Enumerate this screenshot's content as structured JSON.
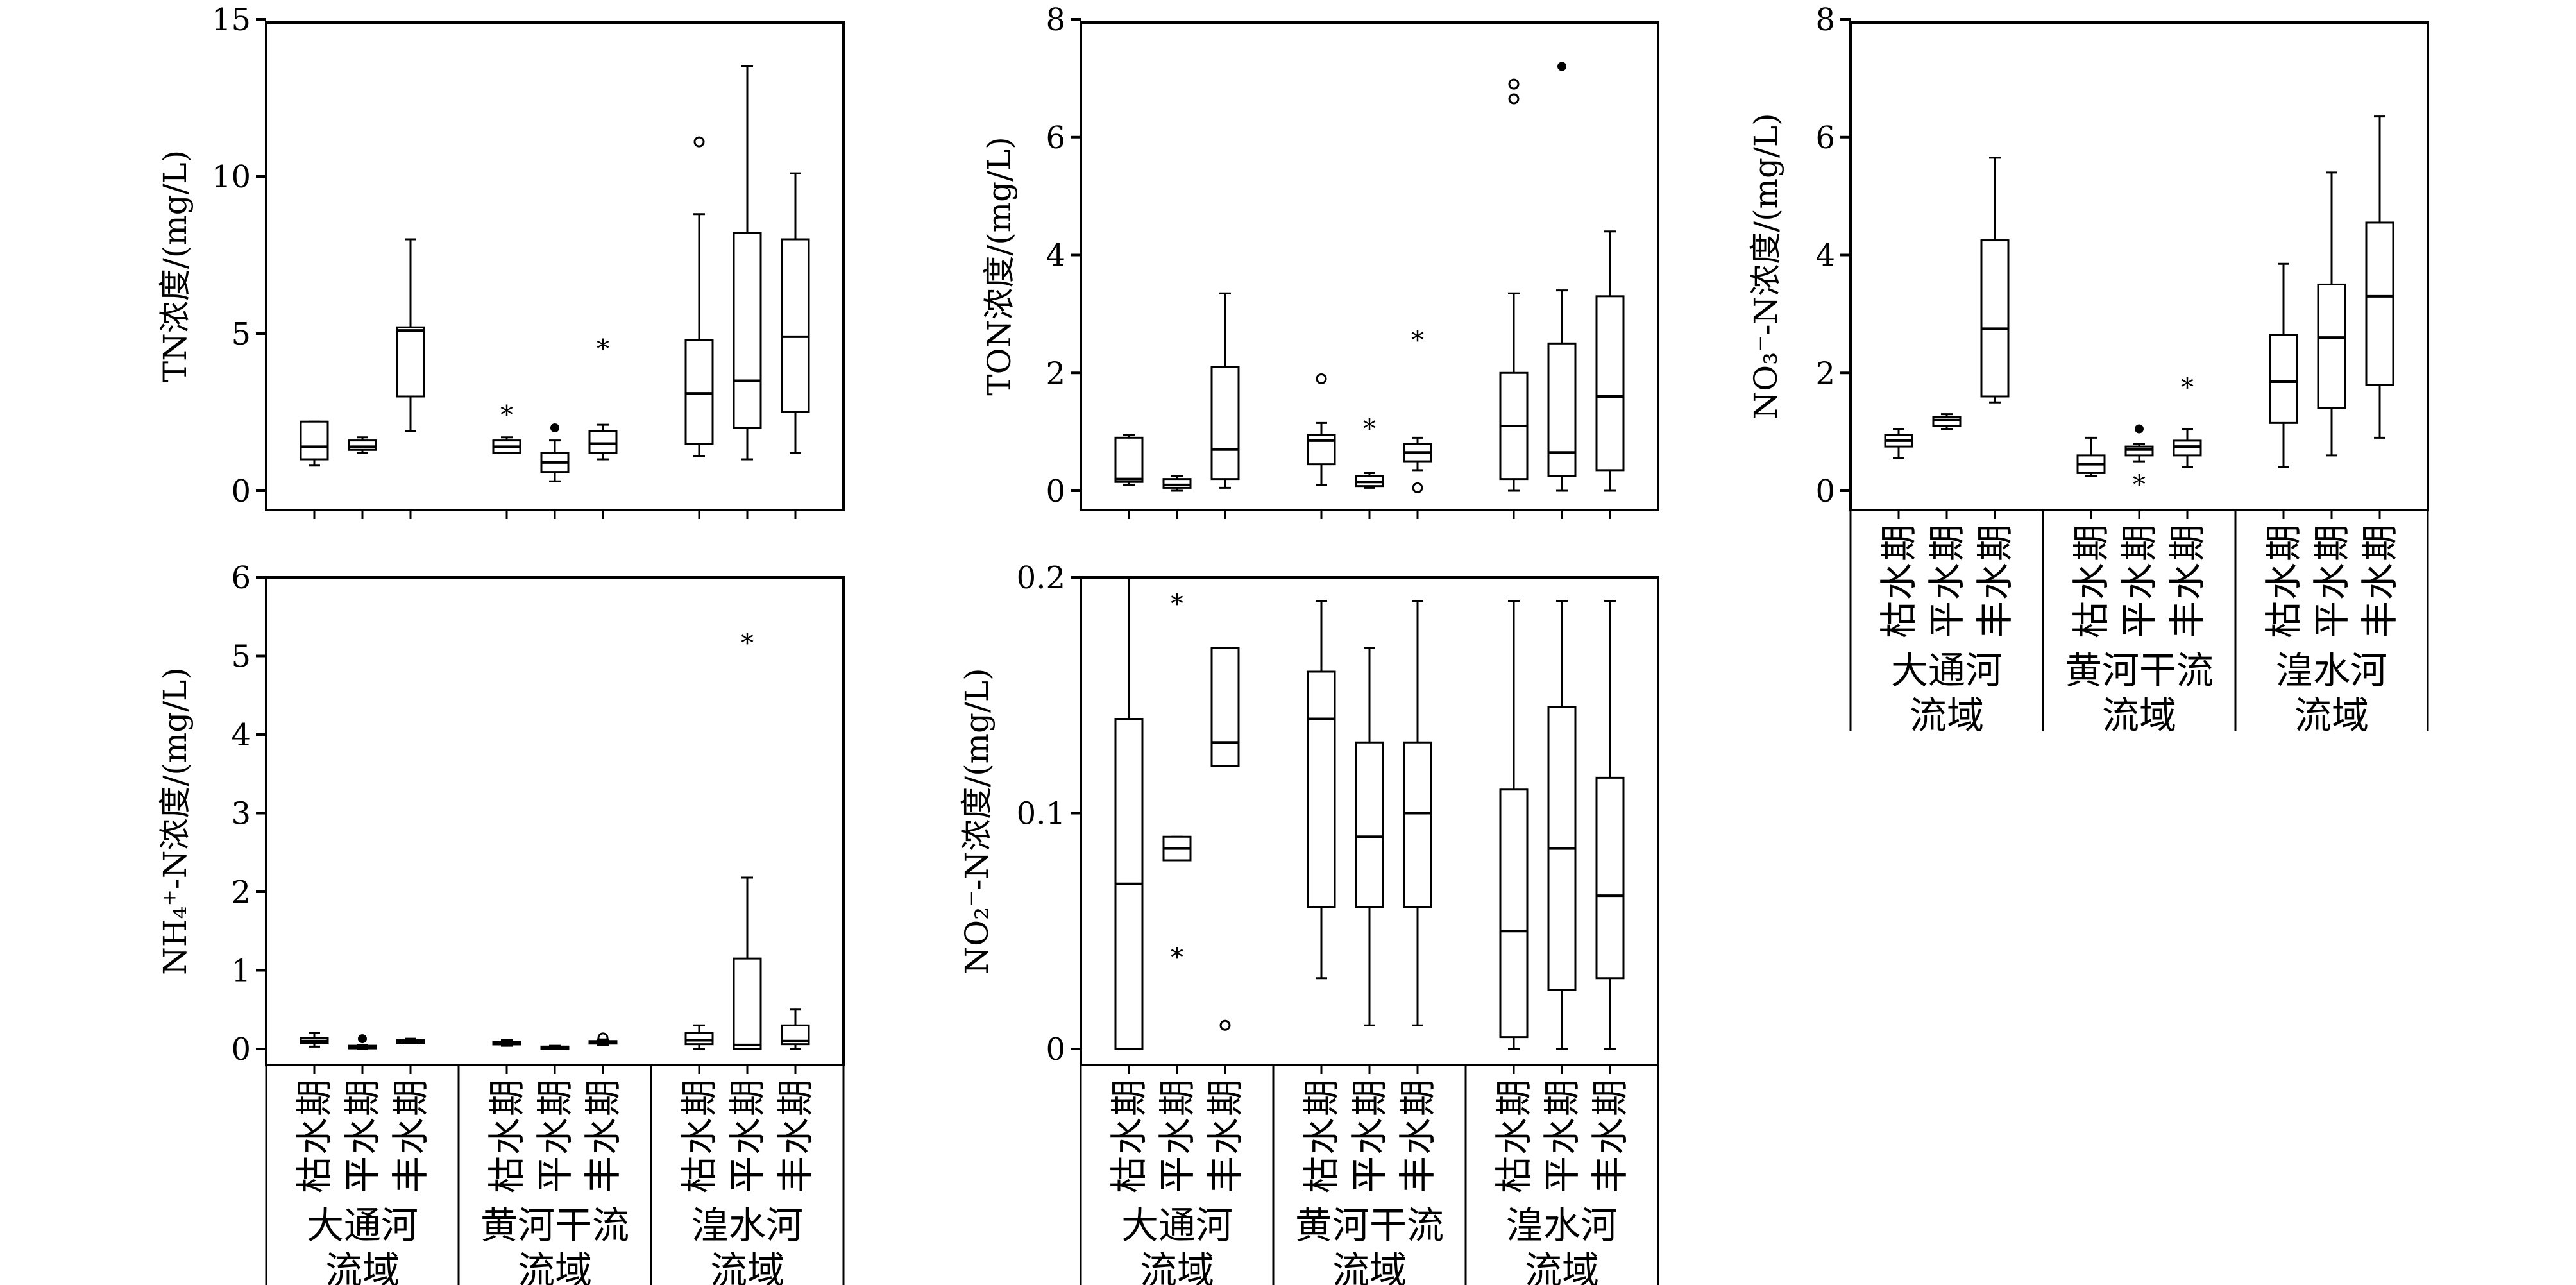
{
  "x_labels": {
    "seasons": [
      "枯水期",
      "平水期",
      "丰水期"
    ],
    "basins": [
      {
        "line1": "大通河",
        "line2": "流域"
      },
      {
        "line1": "黄河干流",
        "line2": "流域"
      },
      {
        "line1": "湟水河",
        "line2": "流域"
      }
    ]
  },
  "chart_data": [
    {
      "id": "TN",
      "type": "box",
      "ylabel": "TN浓度/(mg/L)",
      "ylim": [
        0,
        15
      ],
      "yticks": [
        0,
        5,
        10,
        15
      ],
      "tick_labels": [
        "0",
        "5",
        "10",
        "15"
      ],
      "boxes": [
        {
          "basin": "大通河流域",
          "season": "枯水期",
          "min": 0.8,
          "q1": 1.0,
          "median": 1.4,
          "q3": 2.2,
          "max": 2.2,
          "outliers": []
        },
        {
          "basin": "大通河流域",
          "season": "平水期",
          "min": 1.2,
          "q1": 1.3,
          "median": 1.4,
          "q3": 1.6,
          "max": 1.7,
          "outliers": []
        },
        {
          "basin": "大通河流域",
          "season": "丰水期",
          "min": 1.9,
          "q1": 3.0,
          "median": 5.1,
          "q3": 5.2,
          "max": 8.0,
          "outliers": []
        },
        {
          "basin": "黄河干流流域",
          "season": "枯水期",
          "min": 1.2,
          "q1": 1.2,
          "median": 1.4,
          "q3": 1.6,
          "max": 1.7,
          "outliers": [
            {
              "value": 2.5,
              "marker": "star"
            }
          ]
        },
        {
          "basin": "黄河干流流域",
          "season": "平水期",
          "min": 0.3,
          "q1": 0.6,
          "median": 0.9,
          "q3": 1.2,
          "max": 1.6,
          "outliers": [
            {
              "value": 2.0,
              "marker": "dot"
            }
          ]
        },
        {
          "basin": "黄河干流流域",
          "season": "丰水期",
          "min": 1.0,
          "q1": 1.2,
          "median": 1.5,
          "q3": 1.9,
          "max": 2.1,
          "outliers": [
            {
              "value": 4.6,
              "marker": "star"
            }
          ]
        },
        {
          "basin": "湟水河流域",
          "season": "枯水期",
          "min": 1.1,
          "q1": 1.5,
          "median": 3.1,
          "q3": 4.8,
          "max": 8.8,
          "outliers": [
            {
              "value": 11.1,
              "marker": "circle"
            }
          ]
        },
        {
          "basin": "湟水河流域",
          "season": "平水期",
          "min": 1.0,
          "q1": 2.0,
          "median": 3.5,
          "q3": 8.2,
          "max": 13.5,
          "outliers": []
        },
        {
          "basin": "湟水河流域",
          "season": "丰水期",
          "min": 1.2,
          "q1": 2.5,
          "median": 4.9,
          "q3": 8.0,
          "max": 10.1,
          "outliers": []
        }
      ]
    },
    {
      "id": "TON",
      "type": "box",
      "ylabel": "TON浓度/(mg/L)",
      "ylim": [
        0,
        8
      ],
      "yticks": [
        0,
        2,
        4,
        6,
        8
      ],
      "tick_labels": [
        "0",
        "2",
        "4",
        "6",
        "8"
      ],
      "boxes": [
        {
          "basin": "大通河流域",
          "season": "枯水期",
          "min": 0.1,
          "q1": 0.15,
          "median": 0.2,
          "q3": 0.9,
          "max": 0.95,
          "outliers": []
        },
        {
          "basin": "大通河流域",
          "season": "平水期",
          "min": 0.0,
          "q1": 0.05,
          "median": 0.1,
          "q3": 0.2,
          "max": 0.25,
          "outliers": []
        },
        {
          "basin": "大通河流域",
          "season": "丰水期",
          "min": 0.05,
          "q1": 0.2,
          "median": 0.7,
          "q3": 2.1,
          "max": 3.35,
          "outliers": []
        },
        {
          "basin": "黄河干流流域",
          "season": "枯水期",
          "min": 0.1,
          "q1": 0.45,
          "median": 0.85,
          "q3": 0.95,
          "max": 1.15,
          "outliers": [
            {
              "value": 1.9,
              "marker": "circle"
            }
          ]
        },
        {
          "basin": "黄河干流流域",
          "season": "平水期",
          "min": 0.05,
          "q1": 0.08,
          "median": 0.15,
          "q3": 0.25,
          "max": 0.3,
          "outliers": [
            {
              "value": 1.1,
              "marker": "star"
            }
          ]
        },
        {
          "basin": "黄河干流流域",
          "season": "丰水期",
          "min": 0.35,
          "q1": 0.5,
          "median": 0.65,
          "q3": 0.8,
          "max": 0.9,
          "outliers": [
            {
              "value": 0.05,
              "marker": "circle"
            },
            {
              "value": 2.6,
              "marker": "star"
            }
          ]
        },
        {
          "basin": "湟水河流域",
          "season": "枯水期",
          "min": 0.0,
          "q1": 0.2,
          "median": 1.1,
          "q3": 2.0,
          "max": 3.35,
          "outliers": [
            {
              "value": 6.65,
              "marker": "circle"
            },
            {
              "value": 6.9,
              "marker": "circle"
            }
          ]
        },
        {
          "basin": "湟水河流域",
          "season": "平水期",
          "min": 0.0,
          "q1": 0.25,
          "median": 0.65,
          "q3": 2.5,
          "max": 3.4,
          "outliers": [
            {
              "value": 7.2,
              "marker": "dot"
            }
          ]
        },
        {
          "basin": "湟水河流域",
          "season": "丰水期",
          "min": 0.0,
          "q1": 0.35,
          "median": 1.6,
          "q3": 3.3,
          "max": 4.4,
          "outliers": []
        }
      ]
    },
    {
      "id": "NO3",
      "type": "box",
      "ylabel": "NO₃⁻-N浓度/(mg/L)",
      "ylim": [
        0,
        8
      ],
      "yticks": [
        0,
        2,
        4,
        6,
        8
      ],
      "tick_labels": [
        "0",
        "2",
        "4",
        "6",
        "8"
      ],
      "boxes": [
        {
          "basin": "大通河流域",
          "season": "枯水期",
          "min": 0.55,
          "q1": 0.75,
          "median": 0.85,
          "q3": 0.95,
          "max": 1.05,
          "outliers": []
        },
        {
          "basin": "大通河流域",
          "season": "平水期",
          "min": 1.05,
          "q1": 1.1,
          "median": 1.2,
          "q3": 1.25,
          "max": 1.3,
          "outliers": []
        },
        {
          "basin": "大通河流域",
          "season": "丰水期",
          "min": 1.5,
          "q1": 1.6,
          "median": 2.75,
          "q3": 4.25,
          "max": 5.65,
          "outliers": []
        },
        {
          "basin": "黄河干流流域",
          "season": "枯水期",
          "min": 0.25,
          "q1": 0.3,
          "median": 0.45,
          "q3": 0.6,
          "max": 0.9,
          "outliers": []
        },
        {
          "basin": "黄河干流流域",
          "season": "平水期",
          "min": 0.5,
          "q1": 0.6,
          "median": 0.7,
          "q3": 0.75,
          "max": 0.8,
          "outliers": [
            {
              "value": 0.15,
              "marker": "star"
            },
            {
              "value": 1.05,
              "marker": "dot"
            }
          ]
        },
        {
          "basin": "黄河干流流域",
          "season": "丰水期",
          "min": 0.4,
          "q1": 0.6,
          "median": 0.75,
          "q3": 0.85,
          "max": 1.05,
          "outliers": [
            {
              "value": 1.8,
              "marker": "star"
            }
          ]
        },
        {
          "basin": "湟水河流域",
          "season": "枯水期",
          "min": 0.4,
          "q1": 1.15,
          "median": 1.85,
          "q3": 2.65,
          "max": 3.85,
          "outliers": []
        },
        {
          "basin": "湟水河流域",
          "season": "平水期",
          "min": 0.6,
          "q1": 1.4,
          "median": 2.6,
          "q3": 3.5,
          "max": 5.4,
          "outliers": []
        },
        {
          "basin": "湟水河流域",
          "season": "丰水期",
          "min": 0.9,
          "q1": 1.8,
          "median": 3.3,
          "q3": 4.55,
          "max": 6.35,
          "outliers": []
        }
      ]
    },
    {
      "id": "NH4",
      "type": "box",
      "ylabel": "NH₄⁺-N浓度/(mg/L)",
      "ylim": [
        0,
        6
      ],
      "yticks": [
        0,
        1,
        2,
        3,
        4,
        5,
        6
      ],
      "tick_labels": [
        "0",
        "1",
        "2",
        "3",
        "4",
        "5",
        "6"
      ],
      "boxes": [
        {
          "basin": "大通河流域",
          "season": "枯水期",
          "min": 0.03,
          "q1": 0.07,
          "median": 0.1,
          "q3": 0.14,
          "max": 0.2,
          "outliers": []
        },
        {
          "basin": "大通河流域",
          "season": "平水期",
          "min": 0.0,
          "q1": 0.01,
          "median": 0.02,
          "q3": 0.04,
          "max": 0.05,
          "outliers": [
            {
              "value": 0.13,
              "marker": "dot"
            }
          ]
        },
        {
          "basin": "大通河流域",
          "season": "丰水期",
          "min": 0.07,
          "q1": 0.09,
          "median": 0.1,
          "q3": 0.11,
          "max": 0.13,
          "outliers": []
        },
        {
          "basin": "黄河干流流域",
          "season": "枯水期",
          "min": 0.04,
          "q1": 0.06,
          "median": 0.07,
          "q3": 0.09,
          "max": 0.11,
          "outliers": []
        },
        {
          "basin": "黄河干流流域",
          "season": "平水期",
          "min": 0.0,
          "q1": 0.01,
          "median": 0.02,
          "q3": 0.03,
          "max": 0.04,
          "outliers": []
        },
        {
          "basin": "黄河干流流域",
          "season": "丰水期",
          "min": 0.05,
          "q1": 0.07,
          "median": 0.09,
          "q3": 0.1,
          "max": 0.12,
          "outliers": [
            {
              "value": 0.14,
              "marker": "circle"
            }
          ]
        },
        {
          "basin": "湟水河流域",
          "season": "枯水期",
          "min": 0.0,
          "q1": 0.06,
          "median": 0.11,
          "q3": 0.2,
          "max": 0.3,
          "outliers": []
        },
        {
          "basin": "湟水河流域",
          "season": "平水期",
          "min": 0.0,
          "q1": 0.0,
          "median": 0.05,
          "q3": 1.15,
          "max": 2.18,
          "outliers": [
            {
              "value": 5.2,
              "marker": "star"
            }
          ]
        },
        {
          "basin": "湟水河流域",
          "season": "丰水期",
          "min": 0.0,
          "q1": 0.06,
          "median": 0.1,
          "q3": 0.3,
          "max": 0.5,
          "outliers": []
        }
      ]
    },
    {
      "id": "NO2",
      "type": "box",
      "ylabel": "NO₂⁻-N浓度/(mg/L)",
      "ylim": [
        0,
        0.2
      ],
      "yticks": [
        0,
        0.1,
        0.2
      ],
      "tick_labels": [
        "0",
        "0.1",
        "0.2"
      ],
      "boxes": [
        {
          "basin": "大通河流域",
          "season": "枯水期",
          "min": 0.0,
          "q1": 0.0,
          "median": 0.07,
          "q3": 0.14,
          "max": 0.2,
          "outliers": []
        },
        {
          "basin": "大通河流域",
          "season": "平水期",
          "min": 0.08,
          "q1": 0.08,
          "median": 0.085,
          "q3": 0.09,
          "max": 0.09,
          "outliers": [
            {
              "value": 0.04,
              "marker": "star"
            },
            {
              "value": 0.19,
              "marker": "star"
            }
          ]
        },
        {
          "basin": "大通河流域",
          "season": "丰水期",
          "min": 0.12,
          "q1": 0.12,
          "median": 0.13,
          "q3": 0.17,
          "max": 0.17,
          "outliers": [
            {
              "value": 0.01,
              "marker": "circle"
            }
          ]
        },
        {
          "basin": "黄河干流流域",
          "season": "枯水期",
          "min": 0.03,
          "q1": 0.06,
          "median": 0.14,
          "q3": 0.16,
          "max": 0.19,
          "outliers": []
        },
        {
          "basin": "黄河干流流域",
          "season": "平水期",
          "min": 0.01,
          "q1": 0.06,
          "median": 0.09,
          "q3": 0.13,
          "max": 0.17,
          "outliers": []
        },
        {
          "basin": "黄河干流流域",
          "season": "丰水期",
          "min": 0.01,
          "q1": 0.06,
          "median": 0.1,
          "q3": 0.13,
          "max": 0.19,
          "outliers": []
        },
        {
          "basin": "湟水河流域",
          "season": "枯水期",
          "min": 0.0,
          "q1": 0.005,
          "median": 0.05,
          "q3": 0.11,
          "max": 0.19,
          "outliers": []
        },
        {
          "basin": "湟水河流域",
          "season": "平水期",
          "min": 0.0,
          "q1": 0.025,
          "median": 0.085,
          "q3": 0.145,
          "max": 0.19,
          "outliers": []
        },
        {
          "basin": "湟水河流域",
          "season": "丰水期",
          "min": 0.0,
          "q1": 0.03,
          "median": 0.065,
          "q3": 0.115,
          "max": 0.19,
          "outliers": []
        }
      ]
    }
  ]
}
